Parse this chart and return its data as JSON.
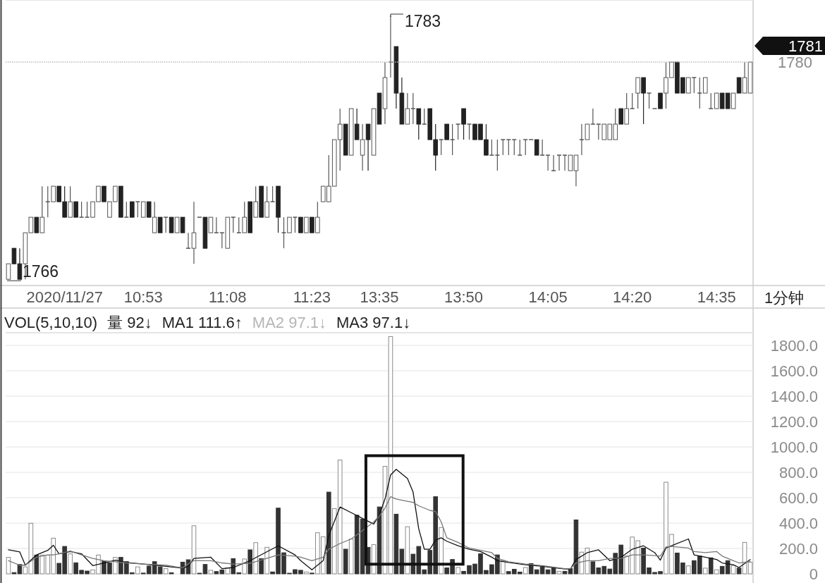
{
  "chart_data": [
    {
      "type": "candlestick",
      "categories": [
        null,
        null,
        null,
        null,
        null,
        null,
        null,
        null,
        null,
        null,
        "2020/11/27",
        null,
        null,
        null,
        null,
        null,
        null,
        null,
        null,
        null,
        null,
        null,
        null,
        null,
        "10:53",
        null,
        null,
        null,
        null,
        null,
        null,
        null,
        null,
        null,
        null,
        null,
        null,
        null,
        null,
        "11:08",
        null,
        null,
        null,
        null,
        null,
        null,
        null,
        null,
        null,
        null,
        null,
        null,
        null,
        null,
        "11:23",
        null,
        null,
        null,
        null,
        null,
        null,
        null,
        null,
        null,
        null,
        null,
        "13:35",
        null,
        null,
        null,
        null,
        null,
        null,
        null,
        null,
        null,
        null,
        null,
        null,
        null,
        null,
        "13:50",
        null,
        null,
        null,
        null,
        null,
        null,
        null,
        null,
        null,
        null,
        null,
        null,
        null,
        null,
        "14:05",
        null,
        null,
        null,
        null,
        null,
        null,
        null,
        null,
        null,
        null,
        null,
        null,
        null,
        null,
        "14:20",
        null,
        null,
        null,
        null,
        null,
        null,
        null,
        null,
        null,
        null,
        null,
        null,
        null,
        null,
        "14:35",
        null,
        null,
        null,
        null,
        null,
        null
      ],
      "ohlc": [
        [
          1766,
          1767,
          1766,
          1767
        ],
        [
          1768,
          1768,
          1767,
          1767
        ],
        [
          1767,
          1768,
          1766,
          1766
        ],
        [
          1767,
          1769,
          1766,
          1769
        ],
        [
          1769,
          1770,
          1769,
          1770
        ],
        [
          1770,
          1770,
          1769,
          1769
        ],
        [
          1769,
          1772,
          1769,
          1770
        ],
        [
          1771,
          1772,
          1770,
          1771
        ],
        [
          1771,
          1772,
          1771,
          1772
        ],
        [
          1772,
          1772,
          1771,
          1771
        ],
        [
          1771,
          1772,
          1770,
          1770
        ],
        [
          1770,
          1772,
          1770,
          1771
        ],
        [
          1771,
          1771,
          1770,
          1770
        ],
        [
          1770,
          1771,
          1770,
          1770
        ],
        [
          1770,
          1771,
          1770,
          1770
        ],
        [
          1770,
          1771,
          1770,
          1771
        ],
        [
          1771,
          1772,
          1771,
          1772
        ],
        [
          1772,
          1772,
          1771,
          1771
        ],
        [
          1770,
          1771,
          1770,
          1771
        ],
        [
          1771,
          1772,
          1771,
          1772
        ],
        [
          1772,
          1772,
          1770,
          1770
        ],
        [
          1770,
          1771,
          1770,
          1770
        ],
        [
          1771,
          1771,
          1770,
          1770
        ],
        [
          1771,
          1771,
          1770,
          1771
        ],
        [
          1770,
          1771,
          1770,
          1771
        ],
        [
          1771,
          1771,
          1770,
          1770
        ],
        [
          1769,
          1771,
          1769,
          1770
        ],
        [
          1770,
          1770,
          1769,
          1769
        ],
        [
          1770,
          1770,
          1769,
          1770
        ],
        [
          1770,
          1770,
          1769,
          1769
        ],
        [
          1769,
          1770,
          1769,
          1770
        ],
        [
          1770,
          1770,
          1769,
          1769
        ],
        [
          1768,
          1769,
          1768,
          1768
        ],
        [
          1768,
          1771,
          1767,
          1769
        ],
        [
          1770,
          1770,
          1770,
          1770
        ],
        [
          1770,
          1770,
          1768,
          1768
        ],
        [
          1769,
          1770,
          1769,
          1770
        ],
        [
          1769,
          1770,
          1769,
          1769
        ],
        [
          1769,
          1769,
          1768,
          1769
        ],
        [
          1768,
          1770,
          1768,
          1770
        ],
        [
          1770,
          1770,
          1769,
          1770
        ],
        [
          1769,
          1770,
          1769,
          1769
        ],
        [
          1769,
          1771,
          1769,
          1770
        ],
        [
          1771,
          1771,
          1769,
          1769
        ],
        [
          1770,
          1772,
          1770,
          1771
        ],
        [
          1772,
          1772,
          1770,
          1770
        ],
        [
          1770,
          1772,
          1770,
          1771
        ],
        [
          1771,
          1772,
          1771,
          1771
        ],
        [
          1772,
          1772,
          1769,
          1770
        ],
        [
          1769,
          1770,
          1768,
          1769
        ],
        [
          1769,
          1770,
          1769,
          1770
        ],
        [
          1770,
          1770,
          1769,
          1770
        ],
        [
          1770,
          1770,
          1769,
          1769
        ],
        [
          1769,
          1770,
          1769,
          1770
        ],
        [
          1770,
          1770,
          1769,
          1769
        ],
        [
          1769,
          1771,
          1769,
          1770
        ],
        [
          1771,
          1772,
          1771,
          1772
        ],
        [
          1771,
          1774,
          1771,
          1772
        ],
        [
          1772,
          1775,
          1772,
          1775
        ],
        [
          1775,
          1777,
          1773,
          1776
        ],
        [
          1776,
          1776,
          1774,
          1774
        ],
        [
          1774,
          1777,
          1774,
          1777
        ],
        [
          1776,
          1777,
          1775,
          1775
        ],
        [
          1774,
          1776,
          1773,
          1775
        ],
        [
          1776,
          1776,
          1773,
          1775
        ],
        [
          1774,
          1777,
          1774,
          1777
        ],
        [
          1778,
          1778,
          1776,
          1776
        ],
        [
          1777,
          1780,
          1776,
          1779
        ],
        [
          1780,
          1783,
          1779,
          1780
        ],
        [
          1781,
          1781,
          1777,
          1778
        ],
        [
          1778,
          1779,
          1776,
          1776
        ],
        [
          1776,
          1778,
          1776,
          1777
        ],
        [
          1777,
          1778,
          1776,
          1777
        ],
        [
          1777,
          1777,
          1775,
          1776
        ],
        [
          1776,
          1777,
          1776,
          1776
        ],
        [
          1777,
          1777,
          1775,
          1775
        ],
        [
          1775,
          1776,
          1773,
          1774
        ],
        [
          1775,
          1775,
          1774,
          1775
        ],
        [
          1776,
          1776,
          1775,
          1775
        ],
        [
          1775,
          1776,
          1774,
          1775
        ],
        [
          1776,
          1776,
          1775,
          1776
        ],
        [
          1777,
          1777,
          1775,
          1776
        ],
        [
          1776,
          1776,
          1775,
          1776
        ],
        [
          1776,
          1776,
          1775,
          1775
        ],
        [
          1776,
          1776,
          1775,
          1775
        ],
        [
          1775,
          1776,
          1774,
          1774
        ],
        [
          1774,
          1775,
          1774,
          1774
        ],
        [
          1774,
          1775,
          1773,
          1774
        ],
        [
          1775,
          1775,
          1774,
          1775
        ],
        [
          1775,
          1775,
          1774,
          1775
        ],
        [
          1775,
          1775,
          1774,
          1775
        ],
        [
          1774,
          1775,
          1774,
          1774
        ],
        [
          1775,
          1775,
          1774,
          1775
        ],
        [
          1775,
          1775,
          1775,
          1775
        ],
        [
          1775,
          1775,
          1774,
          1774
        ],
        [
          1774,
          1775,
          1774,
          1774
        ],
        [
          1774,
          1774,
          1773,
          1774
        ],
        [
          1773,
          1774,
          1773,
          1773
        ],
        [
          1774,
          1774,
          1773,
          1774
        ],
        [
          1774,
          1774,
          1773,
          1774
        ],
        [
          1773,
          1774,
          1773,
          1774
        ],
        [
          1773,
          1774,
          1772,
          1774
        ],
        [
          1775,
          1776,
          1774,
          1775
        ],
        [
          1775,
          1776,
          1775,
          1776
        ],
        [
          1776,
          1777,
          1776,
          1776
        ],
        [
          1776,
          1776,
          1775,
          1776
        ],
        [
          1775,
          1776,
          1775,
          1776
        ],
        [
          1775,
          1776,
          1775,
          1776
        ],
        [
          1775,
          1777,
          1775,
          1776
        ],
        [
          1777,
          1777,
          1776,
          1776
        ],
        [
          1776,
          1778,
          1776,
          1777
        ],
        [
          1777,
          1778,
          1777,
          1777
        ],
        [
          1778,
          1779,
          1777,
          1779
        ],
        [
          1779,
          1779,
          1776,
          1778
        ],
        [
          1778,
          1778,
          1777,
          1778
        ],
        [
          1777,
          1777,
          1777,
          1777
        ],
        [
          1778,
          1778,
          1777,
          1777
        ],
        [
          1778,
          1780,
          1777,
          1779
        ],
        [
          1779,
          1780,
          1779,
          1780
        ],
        [
          1780,
          1780,
          1778,
          1778
        ],
        [
          1779,
          1779,
          1778,
          1778
        ],
        [
          1778,
          1779,
          1778,
          1779
        ],
        [
          1779,
          1779,
          1778,
          1779
        ],
        [
          1778,
          1779,
          1777,
          1778
        ],
        [
          1778,
          1779,
          1778,
          1779
        ],
        [
          1777,
          1778,
          1777,
          1777
        ],
        [
          1777,
          1778,
          1777,
          1778
        ],
        [
          1778,
          1778,
          1777,
          1777
        ],
        [
          1778,
          1778,
          1777,
          1777
        ],
        [
          1777,
          1778,
          1777,
          1778
        ],
        [
          1779,
          1779,
          1778,
          1778
        ],
        [
          1778,
          1780,
          1778,
          1779
        ],
        [
          1778,
          1780,
          1778,
          1780
        ]
      ],
      "ylim": [
        1765.6,
        1784
      ],
      "ref_lines": [
        {
          "axis": "y",
          "value": 1780,
          "label": "1780",
          "color": "#bbbbbb",
          "line_style": "dotted"
        }
      ],
      "annotations": [
        "1783",
        "1766",
        "1分钟",
        "1781"
      ]
    },
    {
      "type": "bar",
      "categories": [
        null,
        null,
        null,
        null,
        null,
        null,
        null,
        null,
        null,
        null,
        null,
        null,
        null,
        null,
        null,
        null,
        null,
        null,
        null,
        null,
        null,
        null,
        null,
        null,
        null,
        null,
        null,
        null,
        null,
        null,
        null,
        null,
        null,
        null,
        null,
        null,
        null,
        null,
        null,
        null,
        null,
        null,
        null,
        null,
        null,
        null,
        null,
        null,
        null,
        null,
        null,
        null,
        null,
        null,
        null,
        null,
        null,
        null,
        null,
        null,
        null,
        null,
        null,
        null,
        null,
        null,
        null,
        null,
        null,
        null,
        null,
        null,
        null,
        null,
        null,
        null,
        null,
        null,
        null,
        null,
        null,
        null,
        null,
        null,
        null,
        null,
        null,
        null,
        null,
        null,
        null,
        null,
        null,
        null,
        null,
        null,
        null,
        null,
        null,
        null,
        null,
        null,
        null,
        null,
        null,
        null,
        null,
        null,
        null,
        null,
        null,
        null,
        null,
        null,
        null,
        null,
        null,
        null,
        null,
        null,
        null,
        null,
        null,
        null,
        null,
        null,
        null,
        null,
        null,
        null,
        null,
        null,
        null
      ],
      "series": [
        {
          "values": [
            130,
            10,
            74,
            55,
            398,
            148,
            148,
            148,
            281,
            83,
            216,
            157,
            87,
            28,
            22,
            31,
            148,
            102,
            87,
            130,
            130,
            96,
            9,
            55,
            6,
            61,
            96,
            55,
            41,
            9,
            null,
            92,
            111,
            379,
            5,
            74,
            28,
            18,
            31,
            46,
            120,
            9,
            117,
            189,
            246,
            120,
            209,
            15,
            518,
            166,
            5,
            33,
            28,
            15,
            6,
            324,
            292,
            644,
            514,
            897,
            194,
            274,
            462,
            431,
            209,
            230,
            527,
            847,
            1870,
            470,
            194,
            371,
            155,
            216,
            32,
            185,
            608,
            365,
            47,
            113,
            50,
            20,
            65,
            77,
            158,
            27,
            72,
            149,
            104,
            18,
            36,
            14,
            50,
            81,
            32,
            54,
            32,
            50,
            20,
            20,
            41,
            425,
            171,
            203,
            95,
            47,
            59,
            38,
            162,
            227,
            140,
            290,
            261,
            203,
            47,
            11,
            18,
            722,
            311,
            164,
            86,
            63,
            104,
            140,
            45,
            126,
            32,
            59,
            104,
            65,
            45,
            248,
            92
          ],
          "colors": [
            "#ffffff",
            "#333333",
            "#333333",
            "#ffffff",
            "#ffffff",
            "#333333",
            "#ffffff",
            "#ffffff",
            "#ffffff",
            "#333333",
            "#333333",
            "#ffffff",
            "#333333",
            "#333333",
            "#333333",
            "#ffffff",
            "#ffffff",
            "#333333",
            "#333333",
            "#ffffff",
            "#333333",
            "#333333",
            "#333333",
            "#ffffff",
            "#333333",
            "#333333",
            "#333333",
            "#333333",
            "#ffffff",
            "#333333",
            null,
            "#333333",
            "#333333",
            "#ffffff",
            "#333333",
            "#333333",
            "#ffffff",
            "#333333",
            "#333333",
            "#ffffff",
            "#333333",
            "#333333",
            "#ffffff",
            "#333333",
            "#ffffff",
            "#333333",
            "#ffffff",
            "#333333",
            "#333333",
            "#333333",
            "#333333",
            "#333333",
            "#333333",
            "#ffffff",
            "#333333",
            "#ffffff",
            "#ffffff",
            "#333333",
            "#ffffff",
            "#ffffff",
            "#333333",
            "#ffffff",
            "#333333",
            "#333333",
            "#333333",
            "#ffffff",
            "#333333",
            "#ffffff",
            "#ffffff",
            "#333333",
            "#333333",
            "#ffffff",
            "#333333",
            "#333333",
            "#333333",
            "#333333",
            "#333333",
            "#ffffff",
            "#333333",
            "#333333",
            "#ffffff",
            "#333333",
            "#333333",
            "#333333",
            "#333333",
            "#333333",
            "#333333",
            "#333333",
            "#ffffff",
            "#333333",
            "#333333",
            "#333333",
            "#ffffff",
            "#333333",
            "#333333",
            "#333333",
            "#333333",
            "#333333",
            "#ffffff",
            "#333333",
            "#333333",
            "#333333",
            "#ffffff",
            "#ffffff",
            "#333333",
            "#333333",
            "#333333",
            "#333333",
            "#333333",
            "#333333",
            "#ffffff",
            "#ffffff",
            "#ffffff",
            "#333333",
            "#333333",
            "#333333",
            "#333333",
            "#ffffff",
            "#ffffff",
            "#333333",
            "#333333",
            "#ffffff",
            "#333333",
            "#333333",
            "#ffffff",
            "#333333",
            "#ffffff",
            "#333333",
            "#333333",
            "#ffffff",
            "#333333",
            "#ffffff",
            "#ffffff"
          ]
        },
        {
          "type": "line",
          "color": "#111111",
          "values": [
            189,
            null,
            173,
            68,
            null,
            149,
            null,
            185,
            225,
            158,
            null,
            176,
            null,
            158,
            null,
            65,
            null,
            86,
            null,
            108,
            null,
            90,
            null,
            null,
            77,
            null,
            null,
            null,
            59,
            null,
            null,
            45,
            59,
            122,
            null,
            null,
            131,
            null,
            41,
            null,
            50,
            null,
            null,
            104,
            null,
            null,
            null,
            null,
            221,
            null,
            null,
            149,
            104,
            null,
            32,
            null,
            104,
            302,
            null,
            527,
            null,
            482,
            null,
            437,
            null,
            392,
            464,
            590,
            779,
            824,
            null,
            752,
            644,
            356,
            194,
            194,
            266,
            284,
            257,
            null,
            221,
            null,
            194,
            null,
            176,
            null,
            131,
            104,
            null,
            90,
            null,
            null,
            72,
            null,
            null,
            59,
            null,
            null,
            null,
            38,
            38,
            113,
            null,
            167,
            null,
            189,
            null,
            104,
            null,
            131,
            null,
            194,
            null,
            221,
            null,
            167,
            108,
            203,
            221,
            null,
            null,
            275,
            149,
            null,
            131,
            null,
            113,
            86,
            null,
            72,
            50,
            null,
            112
          ]
        },
        {
          "type": "line",
          "color": "#777777",
          "values": [
            104,
            null,
            68,
            68,
            null,
            131,
            null,
            149,
            149,
            158,
            null,
            180,
            null,
            149,
            null,
            122,
            null,
            104,
            null,
            95,
            null,
            86,
            null,
            null,
            77,
            null,
            null,
            null,
            68,
            null,
            null,
            47,
            77,
            104,
            null,
            null,
            104,
            null,
            86,
            null,
            77,
            null,
            null,
            83,
            null,
            null,
            null,
            null,
            149,
            null,
            null,
            140,
            131,
            null,
            104,
            null,
            131,
            194,
            null,
            239,
            null,
            275,
            null,
            340,
            null,
            410,
            455,
            518,
            608,
            590,
            null,
            572,
            563,
            536,
            518,
            500,
            491,
            410,
            284,
            null,
            248,
            null,
            203,
            null,
            185,
            null,
            167,
            122,
            null,
            95,
            null,
            null,
            77,
            null,
            null,
            65,
            null,
            null,
            null,
            41,
            41,
            86,
            null,
            104,
            null,
            104,
            null,
            122,
            null,
            122,
            null,
            149,
            null,
            149,
            null,
            144,
            140,
            212,
            216,
            null,
            null,
            203,
            176,
            null,
            167,
            null,
            176,
            140,
            null,
            104,
            86,
            null,
            97
          ]
        }
      ],
      "ylim": [
        0,
        1900
      ],
      "yticks": [
        0,
        {
          "value": 200,
          "label": "200.0"
        },
        {
          "value": 400,
          "label": "400.0"
        },
        {
          "value": 600,
          "label": "600.0"
        },
        {
          "value": 800,
          "label": "800.0"
        },
        {
          "value": 1000,
          "label": "1000.0"
        },
        {
          "value": 1200,
          "label": "1200.0"
        },
        {
          "value": 1400,
          "label": "1400.0"
        },
        {
          "value": 1600,
          "label": "1600.0"
        },
        {
          "value": 1800,
          "label": "1800.0"
        }
      ],
      "grid": "y",
      "tick_labels": "y",
      "annotations": [
        "VOL(5,10,10)",
        "量 92↓",
        "MA1 111.6↑",
        "MA2 97.1↓",
        "MA3 97.1↓"
      ]
    }
  ]
}
